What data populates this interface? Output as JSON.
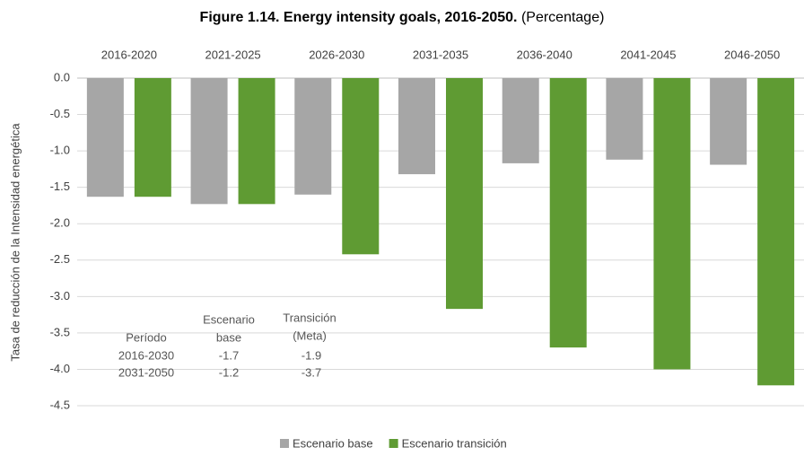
{
  "chart_data": {
    "type": "bar",
    "title": "Figure 1.14. Energy intensity goals, 2016-2050.",
    "title_note": "(Percentage)",
    "y_label": "Tasa de reducción de la Intensidad energética",
    "categories": [
      "2016-2020",
      "2021-2025",
      "2026-2030",
      "2031-2035",
      "2036-2040",
      "2041-2045",
      "2046-2050"
    ],
    "series": [
      {
        "name": "Escenario base",
        "color": "#a6a6a6",
        "values": [
          -1.63,
          -1.73,
          -1.6,
          -1.32,
          -1.17,
          -1.12,
          -1.19
        ]
      },
      {
        "name": "Escenario transición",
        "color": "#5f9b33",
        "values": [
          -1.63,
          -1.73,
          -2.42,
          -3.17,
          -3.7,
          -4.0,
          -4.22
        ]
      }
    ],
    "ylim": [
      0,
      -4.5
    ],
    "yticks": [
      {
        "value": 0,
        "label": "0.0"
      },
      {
        "value": -0.5,
        "label": "-0.5"
      },
      {
        "value": -1,
        "label": "-1.0"
      },
      {
        "value": -1.5,
        "label": "-1.5"
      },
      {
        "value": -2,
        "label": "-2.0"
      },
      {
        "value": -2.5,
        "label": "-2.5"
      },
      {
        "value": -3,
        "label": "-3.0"
      },
      {
        "value": -3.5,
        "label": "-3.5"
      },
      {
        "value": -4,
        "label": "-4.0"
      },
      {
        "value": -4.5,
        "label": "-4.5"
      }
    ],
    "grid": true,
    "legend": "bottom",
    "annotation_table": {
      "headers": [
        [
          "Período"
        ],
        [
          "Escenario",
          "base"
        ],
        [
          "Transición",
          "(Meta)"
        ]
      ],
      "rows": [
        [
          "2016-2030",
          "-1.7",
          "-1.9"
        ],
        [
          "2031-2050",
          "-1.2",
          "-3.7"
        ]
      ]
    }
  }
}
